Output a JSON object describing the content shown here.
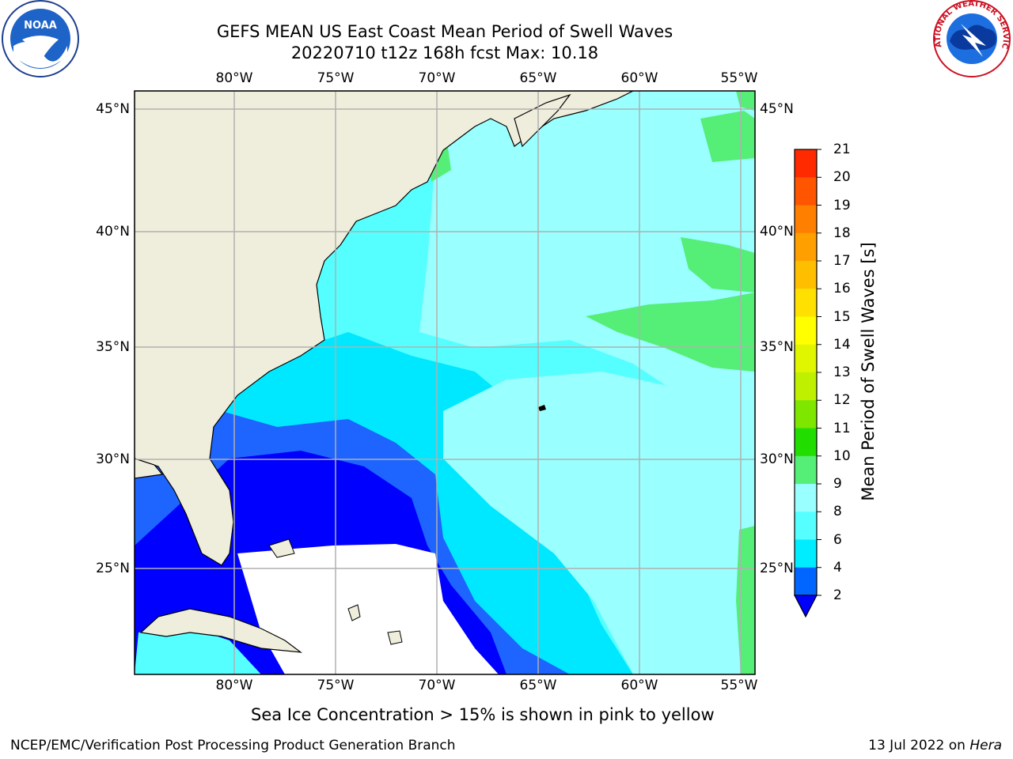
{
  "title_line1": "GEFS MEAN US East Coast Mean Period of Swell Waves",
  "title_line2": "20220710 t12z 168h fcst   Max: 10.18",
  "longitude_labels": [
    "80°W",
    "75°W",
    "70°W",
    "65°W",
    "60°W",
    "55°W"
  ],
  "latitude_labels": [
    "45°N",
    "40°N",
    "35°N",
    "30°N",
    "25°N"
  ],
  "colorbar": {
    "label": "Mean Period of Swell Waves [s]",
    "ticks": [
      "21",
      "20",
      "19",
      "18",
      "17",
      "16",
      "15",
      "14",
      "13",
      "12",
      "11",
      "10",
      "9",
      "8",
      "6",
      "4",
      "2"
    ],
    "colors": [
      "#ff0000",
      "#ff2a00",
      "#ff5500",
      "#ff7f00",
      "#ff9f00",
      "#ffbf00",
      "#ffe000",
      "#ffff00",
      "#e0f500",
      "#bff000",
      "#7fe600",
      "#22dd00",
      "#55ee77",
      "#99ffff",
      "#55ffff",
      "#00ecff",
      "#0066ff"
    ],
    "under_color": "#0000ff"
  },
  "note": "Sea Ice Concentration > 15% is shown in pink to yellow",
  "footer_left": "NCEP/EMC/Verification Post Processing Product Generation Branch",
  "footer_date": "13 Jul 2022 on ",
  "footer_host": "Hera",
  "logos": {
    "noaa_text": "NOAA",
    "nws_text": "NATIONAL WEATHER SERVICE"
  },
  "colors": {
    "land": "#efeedd",
    "water_deep_blue": "#0000ff",
    "water_blue": "#1e64ff",
    "water_cyan": "#00e8ff",
    "water_light_cyan": "#55ffff",
    "water_pale_cyan": "#99ffff",
    "water_green": "#55ee77",
    "no_data": "#ffffff",
    "grid": "#b0b0b0"
  }
}
